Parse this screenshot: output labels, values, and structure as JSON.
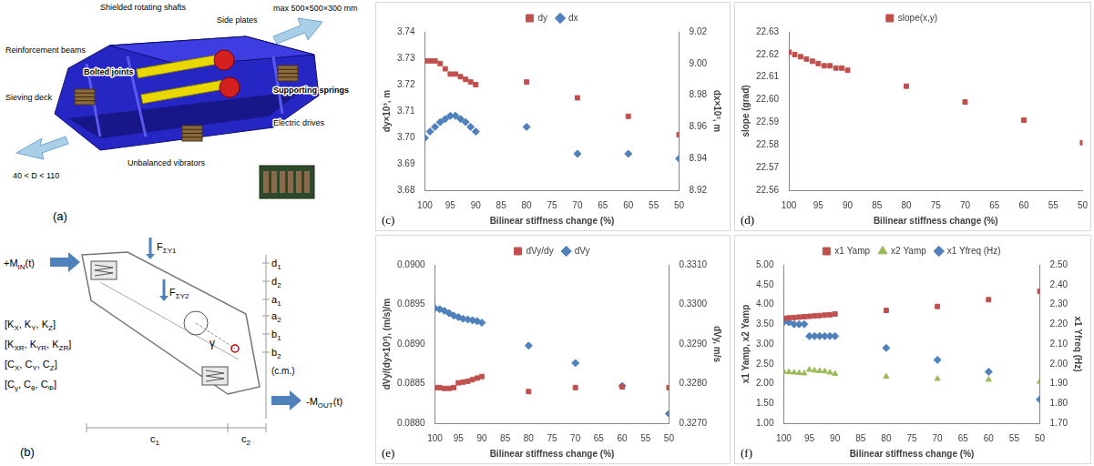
{
  "chart_data": [
    {
      "panel": "(c)",
      "type": "scatter",
      "x_label": "Bilinear stiffness change (%)",
      "y_label": "dy×10³, m",
      "y2_label": "dx×10³, m",
      "x": [
        100,
        99,
        98,
        97,
        96,
        95,
        94,
        93,
        92,
        91,
        90,
        80,
        70,
        60,
        50
      ],
      "xlim": [
        100,
        50
      ],
      "xticks": [
        100,
        95,
        90,
        85,
        80,
        75,
        70,
        65,
        60,
        55,
        50
      ],
      "ylim": [
        3.68,
        3.74
      ],
      "yticks": [
        3.68,
        3.69,
        {
          "value": 3.7,
          "label": "3.70"
        },
        3.71,
        3.72,
        3.73,
        3.74
      ],
      "y2lim": [
        8.92,
        9.02
      ],
      "y2ticks": [
        8.92,
        8.94,
        8.96,
        8.98,
        {
          "value": 9,
          "label": "9.00"
        },
        9.02
      ],
      "grid": false,
      "legend": "top",
      "series": [
        {
          "name": "dy",
          "color": "#c0504d",
          "marker": "square",
          "values": [
            3.729,
            3.729,
            3.729,
            3.728,
            3.726,
            3.724,
            3.724,
            3.723,
            3.722,
            3.721,
            3.72,
            3.721,
            3.715,
            3.708,
            3.701
          ]
        },
        {
          "name": "dx",
          "color": "#4f81bd",
          "marker": "diamond",
          "axis": "y2",
          "values": [
            8.953,
            8.957,
            8.96,
            8.963,
            8.965,
            8.967,
            8.967,
            8.965,
            8.963,
            8.96,
            8.957,
            8.96,
            8.943,
            8.943,
            8.94
          ]
        }
      ]
    },
    {
      "panel": "(d)",
      "type": "scatter",
      "x_label": "Bilinear stiffness change (%)",
      "y_label": "slope (grad)",
      "x": [
        100,
        99,
        98,
        97,
        96,
        95,
        94,
        93,
        92,
        91,
        90,
        80,
        70,
        60,
        50
      ],
      "xlim": [
        100,
        50
      ],
      "xticks": [
        100,
        95,
        90,
        85,
        80,
        75,
        70,
        65,
        60,
        55,
        50
      ],
      "ylim": [
        22.56,
        22.63
      ],
      "yticks": [
        22.56,
        22.57,
        22.58,
        22.59,
        {
          "value": 22.6,
          "label": "22.60"
        },
        22.61,
        22.62,
        22.63
      ],
      "grid": false,
      "legend": "top",
      "series": [
        {
          "name": "slope(x,y)",
          "color": "#c0504d",
          "marker": "square",
          "values": [
            22.621,
            22.62,
            22.619,
            22.618,
            22.617,
            22.616,
            22.615,
            22.615,
            22.614,
            22.614,
            22.613,
            22.606,
            22.599,
            22.591,
            22.581
          ]
        }
      ]
    },
    {
      "panel": "(e)",
      "type": "scatter",
      "x_label": "Bilinear stiffness change (%)",
      "y_label": "dVy/(dy×10³), (m/s)/m",
      "y2_label": "dVy, m/s",
      "x": [
        100,
        99,
        98,
        97,
        96,
        95,
        94,
        93,
        92,
        91,
        90,
        80,
        70,
        60,
        50
      ],
      "xlim": [
        100,
        50
      ],
      "xticks": [
        100,
        95,
        90,
        85,
        80,
        75,
        70,
        65,
        60,
        55,
        50
      ],
      "ylim": [
        0.088,
        0.09
      ],
      "yticks": [
        {
          "value": 0.088,
          "label": "0.0880"
        },
        0.0885,
        {
          "value": 0.089,
          "label": "0.0890"
        },
        0.0895,
        {
          "value": 0.09,
          "label": "0.0900"
        }
      ],
      "y2lim": [
        0.327,
        0.331
      ],
      "y2ticks": [
        {
          "value": 0.327,
          "label": "0.3270"
        },
        {
          "value": 0.328,
          "label": "0.3280"
        },
        {
          "value": 0.329,
          "label": "0.3290"
        },
        {
          "value": 0.33,
          "label": "0.3300"
        },
        {
          "value": 0.331,
          "label": "0.3310"
        }
      ],
      "grid": false,
      "legend": "top",
      "series": [
        {
          "name": "dVy/dy",
          "color": "#c0504d",
          "marker": "square",
          "values": [
            0.08845,
            0.08845,
            0.08844,
            0.08844,
            0.08845,
            0.08851,
            0.08852,
            0.08853,
            0.08855,
            0.08857,
            0.08859,
            0.0884,
            0.08845,
            0.08846,
            0.08845
          ]
        },
        {
          "name": "dVy",
          "color": "#4f81bd",
          "marker": "diamond",
          "axis": "y2",
          "values": [
            0.3299,
            0.32988,
            0.32984,
            0.32978,
            0.32972,
            0.32968,
            0.32964,
            0.32962,
            0.3296,
            0.32958,
            0.32954,
            0.32896,
            0.32852,
            0.32794,
            0.32724
          ]
        }
      ]
    },
    {
      "panel": "(f)",
      "type": "scatter",
      "x_label": "Bilinear stiffness change (%)",
      "y_label": "x1 Yamp, x2 Yamp",
      "y2_label": "x1 Yfreq (Hz)",
      "x": [
        100,
        99,
        98,
        97,
        96,
        95,
        94,
        93,
        92,
        91,
        90,
        80,
        70,
        60,
        50
      ],
      "xlim": [
        100,
        50
      ],
      "xticks": [
        100,
        95,
        90,
        85,
        80,
        75,
        70,
        65,
        60,
        55,
        50
      ],
      "ylim": [
        1,
        5
      ],
      "yticks": [
        {
          "value": 1,
          "label": "1.00"
        },
        {
          "value": 1.5,
          "label": "1.50"
        },
        {
          "value": 2,
          "label": "2.00"
        },
        {
          "value": 2.5,
          "label": "2.50"
        },
        {
          "value": 3,
          "label": "3.00"
        },
        {
          "value": 3.5,
          "label": "3.50"
        },
        {
          "value": 4,
          "label": "4.00"
        },
        {
          "value": 4.5,
          "label": "4.50"
        },
        {
          "value": 5,
          "label": "5.00"
        }
      ],
      "y2lim": [
        1.7,
        2.5
      ],
      "y2ticks": [
        {
          "value": 1.7,
          "label": "1.70"
        },
        {
          "value": 1.8,
          "label": "1.80"
        },
        {
          "value": 1.9,
          "label": "1.90"
        },
        {
          "value": 2,
          "label": "2.00"
        },
        {
          "value": 2.1,
          "label": "2.10"
        },
        {
          "value": 2.2,
          "label": "2.20"
        },
        {
          "value": 2.3,
          "label": "2.30"
        },
        {
          "value": 2.4,
          "label": "2.40"
        },
        {
          "value": 2.5,
          "label": "2.50"
        }
      ],
      "grid": false,
      "legend": "top",
      "series": [
        {
          "name": "x1 Yamp",
          "color": "#c0504d",
          "marker": "square",
          "values": [
            3.65,
            3.66,
            3.67,
            3.68,
            3.69,
            3.7,
            3.71,
            3.72,
            3.73,
            3.74,
            3.76,
            3.85,
            3.95,
            4.12,
            4.33
          ]
        },
        {
          "name": "x2 Yamp",
          "color": "#9bbb59",
          "marker": "triangle",
          "values": [
            2.3,
            2.29,
            2.28,
            2.27,
            2.26,
            2.35,
            2.33,
            2.32,
            2.31,
            2.28,
            2.25,
            2.18,
            2.12,
            2.1,
            2.05
          ]
        },
        {
          "name": "x1 Yfreq (Hz)",
          "color": "#4f81bd",
          "marker": "diamond",
          "axis": "y2",
          "values": [
            2.21,
            2.21,
            2.2,
            2.2,
            2.2,
            2.14,
            2.14,
            2.14,
            2.14,
            2.14,
            2.14,
            2.08,
            2.02,
            1.96,
            1.82
          ]
        }
      ]
    }
  ],
  "diagrams": {
    "panel_a": {
      "panel": "(a)",
      "labels": [
        "Shielded rotating shafts",
        "Side plates",
        "max 500×500×300 mm",
        "Reinforcement beams",
        "Bolted joints",
        "Sieving deck",
        "Supporting springs",
        "Electric drives",
        "Unbalanced vibrators",
        "40 < D < 110"
      ]
    },
    "panel_b": {
      "panel": "(b)",
      "labels": {
        "m_in": [
          {
            "t": "+M"
          },
          {
            "sub": "IN"
          },
          {
            "t": "(t)"
          }
        ],
        "f1": [
          {
            "t": "F"
          },
          {
            "sub": "ΣY1"
          }
        ],
        "f2": [
          {
            "t": "F"
          },
          {
            "sub": "ΣY2"
          }
        ],
        "d1": [
          {
            "t": "d"
          },
          {
            "sub": "1"
          }
        ],
        "d2": [
          {
            "t": "d"
          },
          {
            "sub": "2"
          }
        ],
        "a1": [
          {
            "t": "a"
          },
          {
            "sub": "1"
          }
        ],
        "a2": [
          {
            "t": "a"
          },
          {
            "sub": "2"
          }
        ],
        "b1": [
          {
            "t": "b"
          },
          {
            "sub": "1"
          }
        ],
        "b2": [
          {
            "t": "b"
          },
          {
            "sub": "2"
          }
        ],
        "cm": [
          {
            "t": "(c.m.)"
          }
        ],
        "gamma": [
          {
            "t": "γ"
          }
        ],
        "k": [
          {
            "t": "[K"
          },
          {
            "sub": "X"
          },
          {
            "t": ", K"
          },
          {
            "sub": "Y"
          },
          {
            "t": ", K"
          },
          {
            "sub": "Z"
          },
          {
            "t": "]"
          }
        ],
        "kr": [
          {
            "t": "[K"
          },
          {
            "sub": "XR"
          },
          {
            "t": ", K"
          },
          {
            "sub": "YR"
          },
          {
            "t": ", K"
          },
          {
            "sub": "ZR"
          },
          {
            "t": "]"
          }
        ],
        "c": [
          {
            "t": "[C"
          },
          {
            "sub": "X"
          },
          {
            "t": ", C"
          },
          {
            "sub": "Y"
          },
          {
            "t": ", C"
          },
          {
            "sub": "Z"
          },
          {
            "t": "]"
          }
        ],
        "cr": [
          {
            "t": "[C"
          },
          {
            "sub": "γ"
          },
          {
            "t": ", C"
          },
          {
            "sub": "θ"
          },
          {
            "t": ", C"
          },
          {
            "sub": "Φ"
          },
          {
            "t": "]"
          }
        ],
        "m_out": [
          {
            "t": "-M"
          },
          {
            "sub": "OUT"
          },
          {
            "t": "(t)"
          }
        ],
        "c1": [
          {
            "t": "c"
          },
          {
            "sub": "1"
          }
        ],
        "c2": [
          {
            "t": "c"
          },
          {
            "sub": "2"
          }
        ]
      }
    }
  }
}
